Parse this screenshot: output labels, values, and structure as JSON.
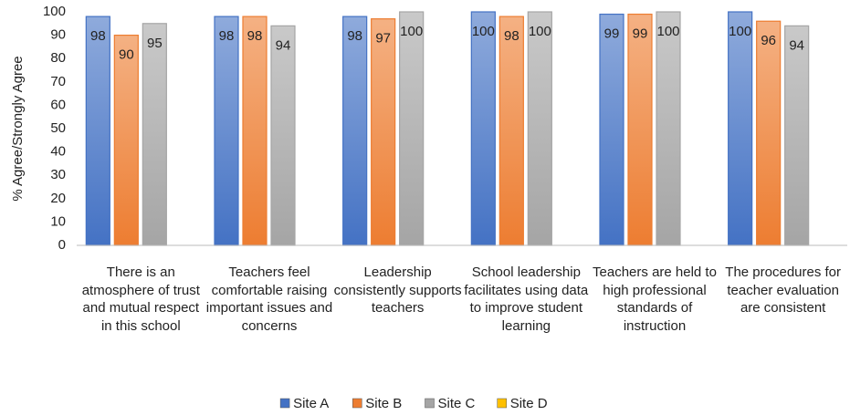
{
  "chart_data": {
    "type": "bar",
    "y_label": "% Agree/Strongly Agree",
    "categories": [
      "There is an atmosphere of trust and mutual respect in this school",
      "Teachers feel comfortable raising important issues and concerns",
      "Leadership consistently supports teachers",
      "School leadership facilitates using data to improve student learning",
      "Teachers are held to high professional standards of instruction",
      "The procedures for teacher evaluation are consistent"
    ],
    "series": [
      {
        "name": "Site A",
        "color": "#4472c4",
        "values": [
          98,
          98,
          98,
          100,
          99,
          100
        ]
      },
      {
        "name": "Site B",
        "color": "#ed7d31",
        "values": [
          90,
          98,
          97,
          98,
          99,
          96
        ]
      },
      {
        "name": "Site C",
        "color": "#a5a5a5",
        "values": [
          95,
          94,
          100,
          100,
          100,
          94
        ]
      },
      {
        "name": "Site D",
        "color": "#ffc000",
        "values": [
          null,
          null,
          null,
          null,
          null,
          null
        ]
      }
    ],
    "ylim": [
      0,
      100
    ],
    "yticks": [
      0,
      10,
      20,
      30,
      40,
      50,
      60,
      70,
      80,
      90,
      100
    ],
    "grid": false,
    "legend": "bottom",
    "data_labels": true
  }
}
